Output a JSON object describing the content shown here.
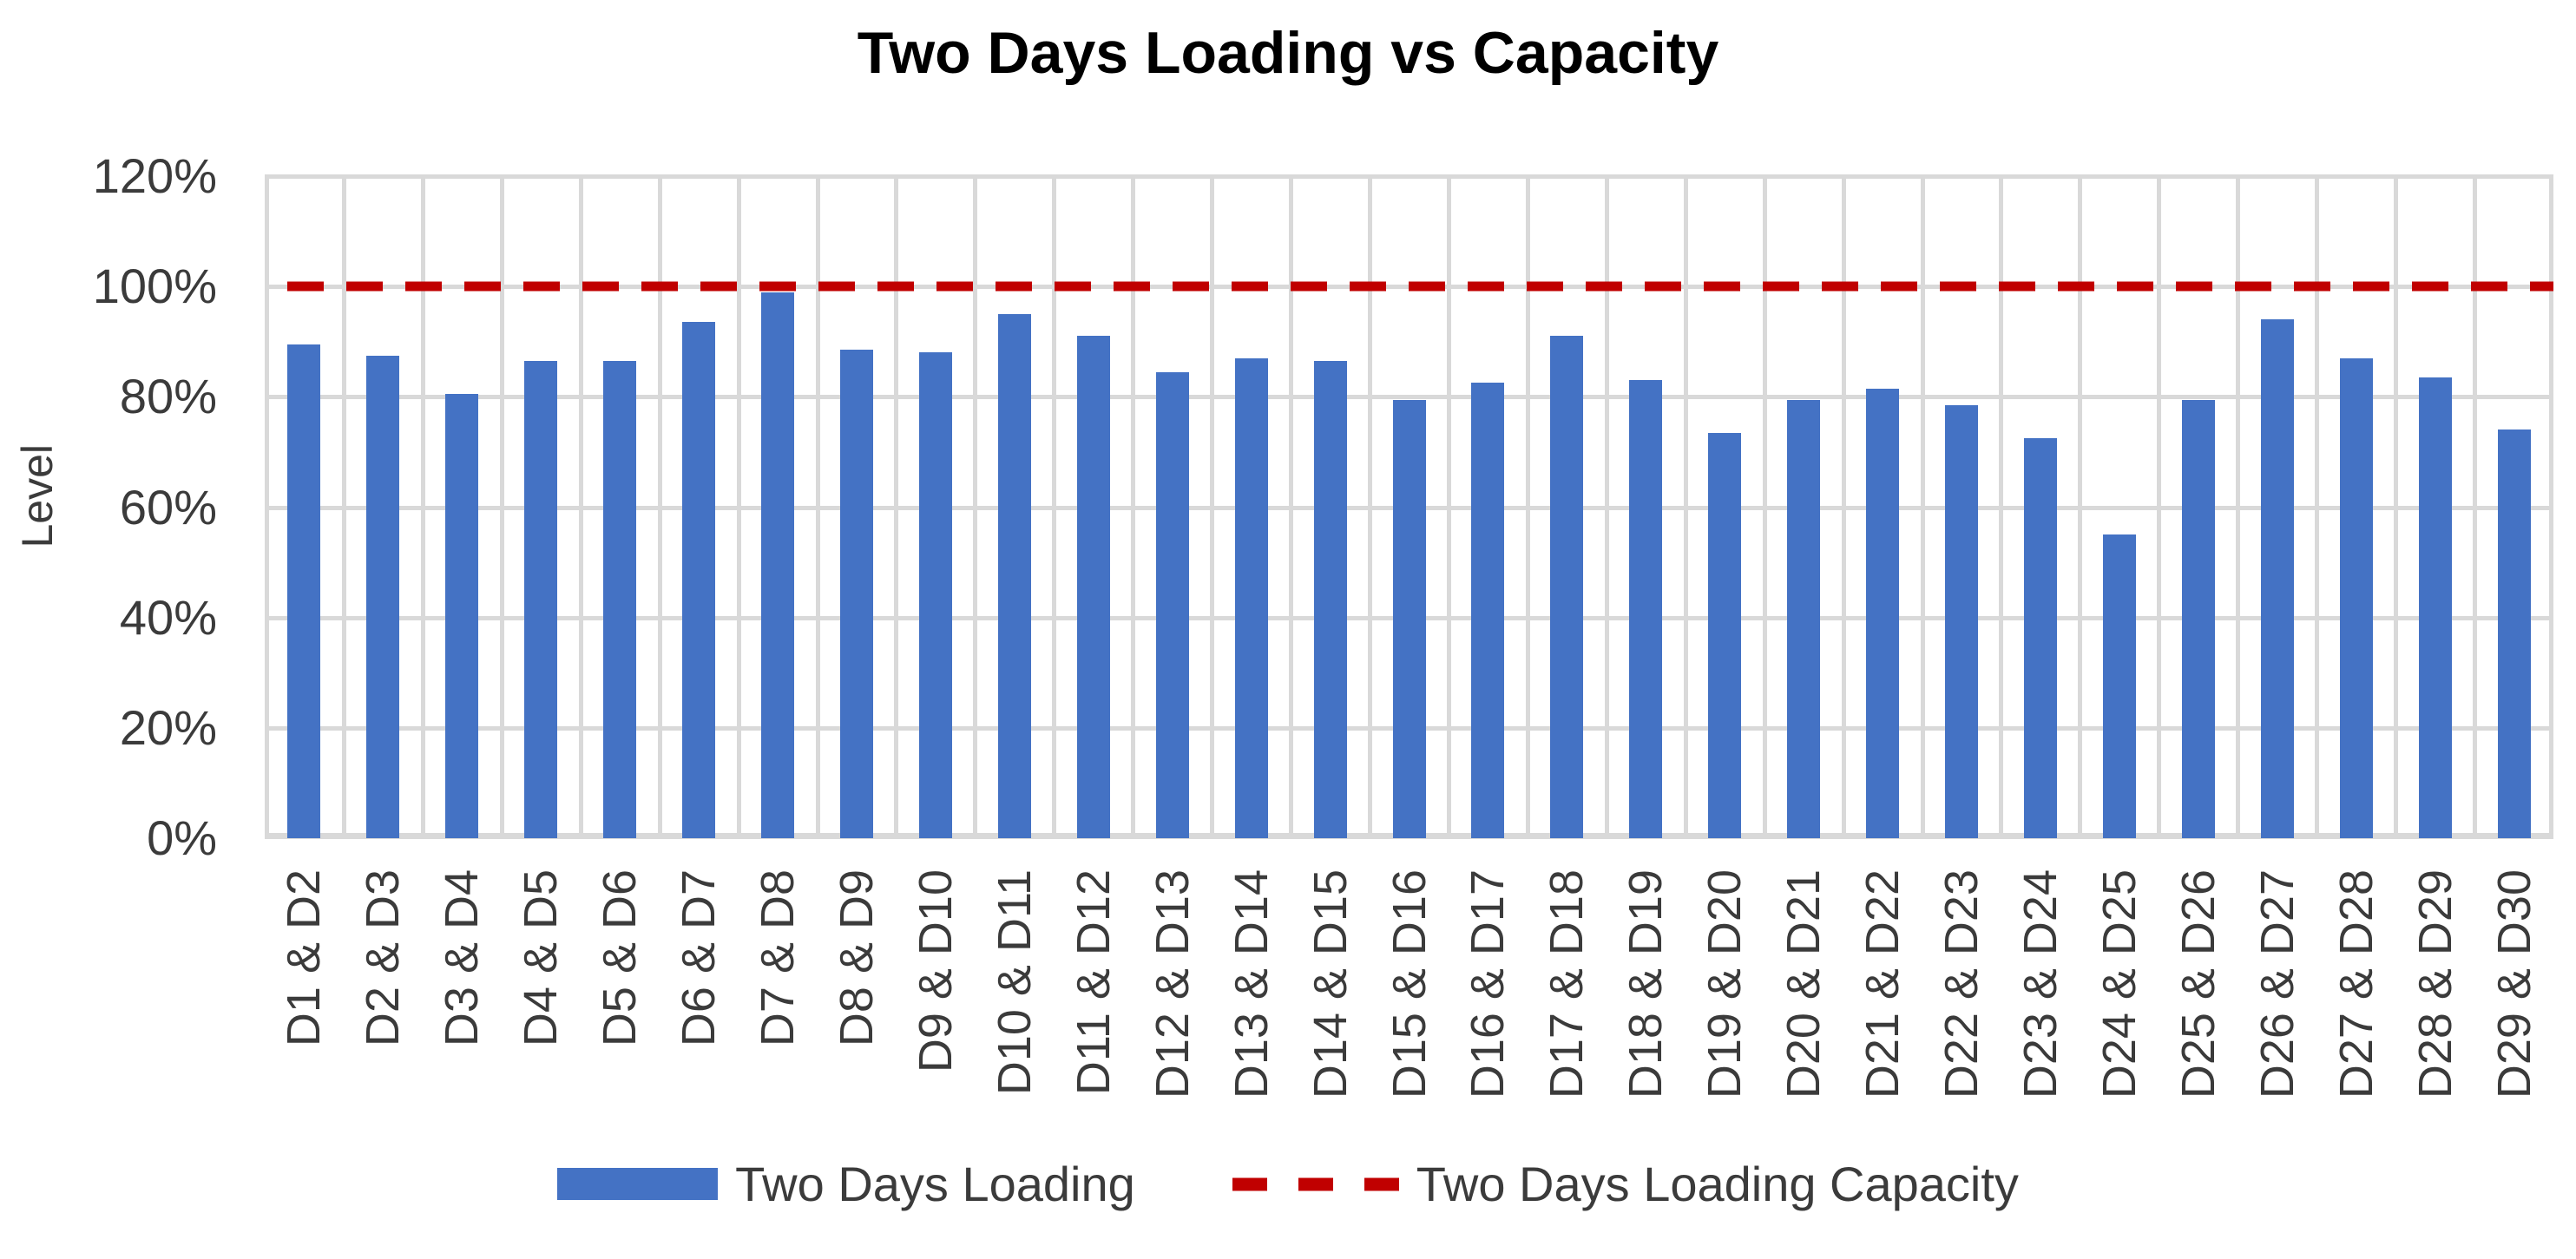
{
  "chart_data": {
    "type": "bar",
    "title": "Two Days Loading vs Capacity",
    "xlabel": "",
    "ylabel": "Level",
    "ylim": [
      0,
      120
    ],
    "grid": true,
    "legend_position": "bottom",
    "y_ticks": [
      "120%",
      "100%",
      "80%",
      "60%",
      "40%",
      "20%",
      "0%"
    ],
    "categories": [
      "D1 & D2",
      "D2 & D3",
      "D3 & D4",
      "D4 & D5",
      "D5 & D6",
      "D6 & D7",
      "D7 & D8",
      "D8 & D9",
      "D9 & D10",
      "D10 & D11",
      "D11 & D12",
      "D12 & D13",
      "D13 & D14",
      "D14 & D15",
      "D15 & D16",
      "D16 & D17",
      "D17 & D18",
      "D18 & D19",
      "D19 & D20",
      "D20 & D21",
      "D21 & D22",
      "D22 & D23",
      "D23 & D24",
      "D24 & D25",
      "D25 & D26",
      "D26 & D27",
      "D27 & D28",
      "D28 & D29",
      "D29 & D30"
    ],
    "series": [
      {
        "name": "Two Days Loading",
        "type": "bar",
        "color": "#4472C4",
        "values_pct": [
          89.5,
          87.5,
          80.5,
          86.5,
          86.5,
          93.5,
          99,
          88.5,
          88,
          95,
          91,
          84.5,
          87,
          86.5,
          79.5,
          82.5,
          91,
          83,
          73.5,
          79.5,
          81.5,
          78.5,
          72.5,
          55,
          79.5,
          94,
          87,
          83.5,
          74
        ]
      },
      {
        "name": "Two Days Loading Capacity",
        "type": "dashed-line",
        "color": "#C00000",
        "value_pct": 100
      }
    ]
  },
  "colors": {
    "bar": "#4472C4",
    "capacity_line": "#C00000",
    "gridline": "#D9D9D9",
    "tick_text": "#3B3B3B",
    "title_text": "#000000"
  }
}
